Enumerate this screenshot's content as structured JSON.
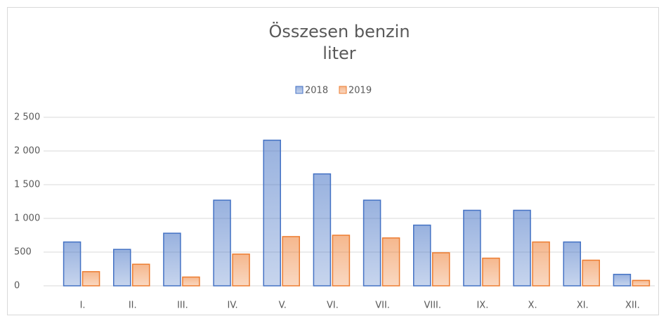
{
  "chart_data": {
    "type": "bar",
    "title": "Összesen benzin",
    "subtitle": "liter",
    "categories": [
      "I.",
      "II.",
      "III.",
      "IV.",
      "V.",
      "VI.",
      "VII.",
      "VIII.",
      "IX.",
      "X.",
      "XI.",
      "XII."
    ],
    "series": [
      {
        "name": "2018",
        "color": "#4472c4",
        "values": [
          650,
          540,
          780,
          1270,
          2160,
          1660,
          1270,
          900,
          1120,
          1120,
          650,
          170
        ]
      },
      {
        "name": "2019",
        "color": "#ed7d31",
        "values": [
          210,
          320,
          130,
          470,
          730,
          750,
          710,
          490,
          410,
          650,
          380,
          80
        ]
      }
    ],
    "ylim": [
      0,
      2500
    ],
    "yticks": [
      0,
      500,
      {
        "value": 1000,
        "label": "1 000"
      },
      {
        "value": 1500,
        "label": "1 500"
      },
      {
        "value": 2000,
        "label": "2 000"
      },
      {
        "value": 2500,
        "label": "2 500"
      }
    ],
    "grid": true,
    "legend": "top"
  }
}
